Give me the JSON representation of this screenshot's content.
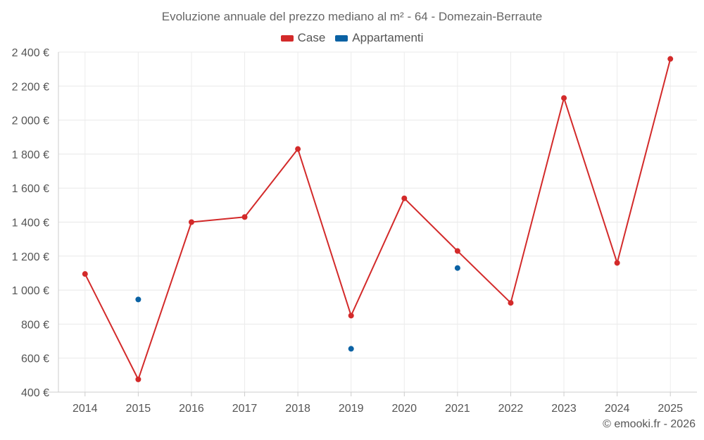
{
  "chart_data": {
    "type": "line",
    "title": "Evoluzione annuale del prezzo mediano al m² - 64 - Domezain-Berraute",
    "xlabel": "",
    "ylabel": "",
    "categories": [
      "2014",
      "2015",
      "2016",
      "2017",
      "2018",
      "2019",
      "2020",
      "2021",
      "2022",
      "2023",
      "2024",
      "2025"
    ],
    "ylim": [
      400,
      2400
    ],
    "yticks": [
      400,
      600,
      800,
      1000,
      1200,
      1400,
      1600,
      1800,
      2000,
      2200,
      2400
    ],
    "ytick_labels": [
      "400 €",
      "600 €",
      "800 €",
      "1 000 €",
      "1 200 €",
      "1 400 €",
      "1 600 €",
      "1 800 €",
      "2 000 €",
      "2 200 €",
      "2 400 €"
    ],
    "grid": true,
    "legend_position": "top-center",
    "series": [
      {
        "name": "Case",
        "color": "#d32a2a",
        "values": [
          1095,
          475,
          1400,
          1430,
          1830,
          850,
          1540,
          1230,
          925,
          2130,
          1160,
          2360
        ],
        "connected": true
      },
      {
        "name": "Appartamenti",
        "color": "#0b62a4",
        "values": [
          null,
          945,
          null,
          null,
          null,
          655,
          null,
          1130,
          null,
          null,
          null,
          null
        ],
        "connected": false
      }
    ]
  },
  "legend": {
    "case_label": "Case",
    "appartamenti_label": "Appartamenti"
  },
  "credit": "© emooki.fr - 2026"
}
